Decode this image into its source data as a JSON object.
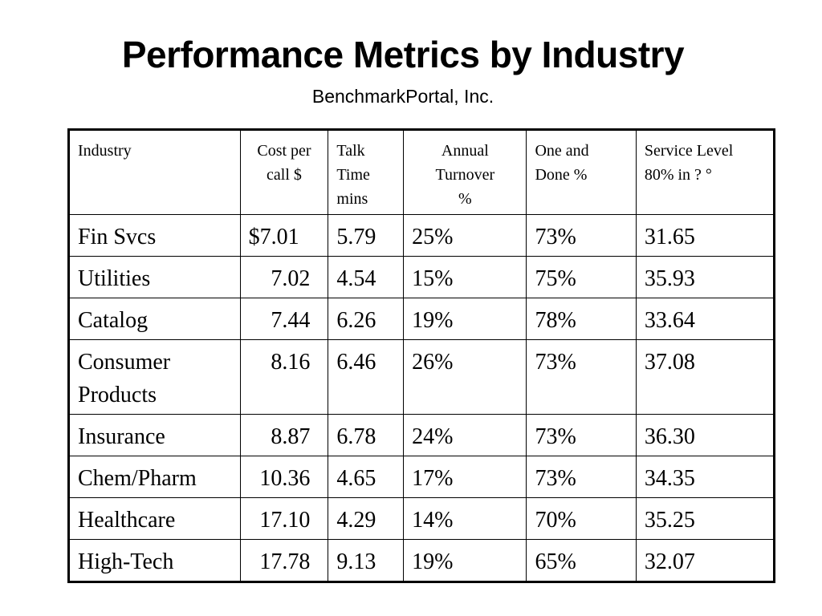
{
  "slide": {
    "title": "Performance Metrics by Industry",
    "subtitle": "BenchmarkPortal, Inc."
  },
  "table": {
    "headers": [
      {
        "line1": "Industry",
        "line2": "",
        "line3": ""
      },
      {
        "line1": "Cost per",
        "line2": "call $",
        "line3": ""
      },
      {
        "line1": "Talk",
        "line2": "Time",
        "line3": "mins"
      },
      {
        "line1": "Annual",
        "line2": "Turnover",
        "line3": "%"
      },
      {
        "line1": "One and",
        "line2": "Done %",
        "line3": ""
      },
      {
        "line1": "Service Level",
        "line2": "80% in ?  °",
        "line3": ""
      }
    ],
    "rows": [
      {
        "industry_l1": "Fin Svcs",
        "industry_l2": "",
        "cost": "$7.01",
        "talk": "5.79",
        "turnover": "25%",
        "one_done": "73%",
        "service": "31.65"
      },
      {
        "industry_l1": "Utilities",
        "industry_l2": "",
        "cost": "7.02",
        "talk": "4.54",
        "turnover": "15%",
        "one_done": "75%",
        "service": "35.93"
      },
      {
        "industry_l1": "Catalog",
        "industry_l2": "",
        "cost": "7.44",
        "talk": "6.26",
        "turnover": "19%",
        "one_done": "78%",
        "service": "33.64"
      },
      {
        "industry_l1": "Consumer",
        "industry_l2": "Products",
        "cost": "8.16",
        "talk": "6.46",
        "turnover": "26%",
        "one_done": "73%",
        "service": "37.08"
      },
      {
        "industry_l1": "Insurance",
        "industry_l2": "",
        "cost": "8.87",
        "talk": "6.78",
        "turnover": "24%",
        "one_done": "73%",
        "service": "36.30"
      },
      {
        "industry_l1": "Chem/Pharm",
        "industry_l2": "",
        "cost": "10.36",
        "talk": "4.65",
        "turnover": "17%",
        "one_done": "73%",
        "service": "34.35"
      },
      {
        "industry_l1": "Healthcare",
        "industry_l2": "",
        "cost": "17.10",
        "talk": "4.29",
        "turnover": "14%",
        "one_done": "70%",
        "service": "35.25"
      },
      {
        "industry_l1": "High-Tech",
        "industry_l2": "",
        "cost": "17.78",
        "talk": "9.13",
        "turnover": "19%",
        "one_done": "65%",
        "service": "32.07"
      }
    ]
  }
}
